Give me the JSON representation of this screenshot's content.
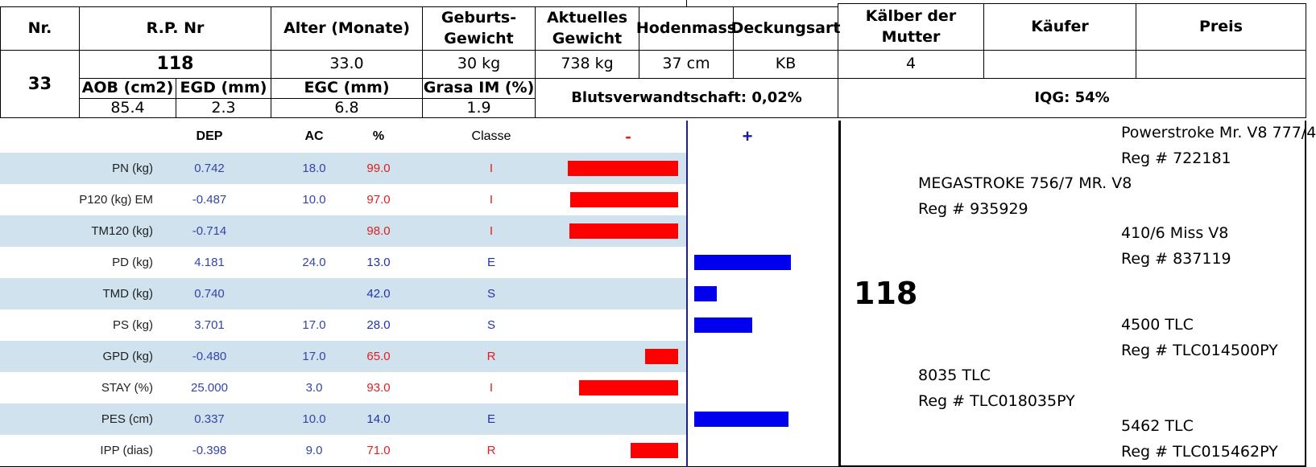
{
  "header": {
    "col_nr": "Nr.",
    "col_rp": "R.P. Nr",
    "col_alter": "Alter (Monate)",
    "col_geburts": "Geburts-\nGewicht",
    "col_aktuell": "Aktuelles\nGewicht",
    "col_hoden": "Hodenmass",
    "col_deckung": "Deckungsart",
    "col_kalber": "Kälber der\nMutter",
    "col_kaufer": "Käufer",
    "col_preis": "Preis"
  },
  "animal": {
    "nr": "33",
    "rp": "118",
    "alter": "33.0",
    "geburts": "30 kg",
    "aktuell": "738 kg",
    "hoden": "37 cm",
    "deckung": "KB",
    "kalber": "4",
    "kaufer": "",
    "preis": ""
  },
  "carcass": {
    "aob_label": "AOB (cm2)",
    "egd_label": "EGD (mm)",
    "egc_label": "EGC (mm)",
    "grasa_label": "Grasa IM (%)",
    "aob": "85.4",
    "egd": "2.3",
    "egc": "6.8",
    "grasa": "1.9",
    "bluts": "Blutsverwandtschaft: 0,02%",
    "iqg": "IQG: 54%"
  },
  "epd": {
    "col_dep": "DEP",
    "col_ac": "AC",
    "col_pct": "%",
    "col_classe": "Classe",
    "minus": "-",
    "plus": "+",
    "neg_color": "#ff0000",
    "pos_color": "#0000ee",
    "rows": [
      {
        "label": "PN (kg)",
        "dep": "0.742",
        "ac": "18.0",
        "pct": "99.0",
        "classe": "I",
        "dir": "neg",
        "magnitude": 0.99
      },
      {
        "label": "P120 (kg) EM",
        "dep": "-0.487",
        "ac": "10.0",
        "pct": "97.0",
        "classe": "I",
        "dir": "neg",
        "magnitude": 0.97
      },
      {
        "label": "TM120 (kg)",
        "dep": "-0.714",
        "ac": "",
        "pct": "98.0",
        "classe": "I",
        "dir": "neg",
        "magnitude": 0.98
      },
      {
        "label": "PD (kg)",
        "dep": "4.181",
        "ac": "24.0",
        "pct": "13.0",
        "classe": "E",
        "dir": "pos",
        "magnitude": 0.87
      },
      {
        "label": "TMD (kg)",
        "dep": "0.740",
        "ac": "",
        "pct": "42.0",
        "classe": "S",
        "dir": "pos",
        "magnitude": 0.2
      },
      {
        "label": "PS (kg)",
        "dep": "3.701",
        "ac": "17.0",
        "pct": "28.0",
        "classe": "S",
        "dir": "pos",
        "magnitude": 0.52
      },
      {
        "label": "GPD (kg)",
        "dep": "-0.480",
        "ac": "17.0",
        "pct": "65.0",
        "classe": "R",
        "dir": "neg",
        "magnitude": 0.3
      },
      {
        "label": "STAY (%)",
        "dep": "25.000",
        "ac": "3.0",
        "pct": "93.0",
        "classe": "I",
        "dir": "neg",
        "magnitude": 0.89
      },
      {
        "label": "PES (cm)",
        "dep": "0.337",
        "ac": "10.0",
        "pct": "14.0",
        "classe": "E",
        "dir": "pos",
        "magnitude": 0.85
      },
      {
        "label": "IPP (dias)",
        "dep": "-0.398",
        "ac": "9.0",
        "pct": "71.0",
        "classe": "R",
        "dir": "neg",
        "magnitude": 0.43
      }
    ]
  },
  "pedigree": {
    "animal": "118",
    "sire": {
      "name": "MEGASTROKE 756/7 MR. V8",
      "reg": "Reg # 935929"
    },
    "sire_sire": {
      "name": "Powerstroke Mr. V8 777/4",
      "reg": "Reg # 722181"
    },
    "sire_dam": {
      "name": "410/6 Miss V8",
      "reg": "Reg # 837119"
    },
    "dam": {
      "name": "8035 TLC",
      "reg": "Reg # TLC018035PY"
    },
    "dam_sire": {
      "name": "4500 TLC",
      "reg": "Reg # TLC014500PY"
    },
    "dam_dam": {
      "name": "5462 TLC",
      "reg": "Reg # TLC015462PY"
    }
  }
}
